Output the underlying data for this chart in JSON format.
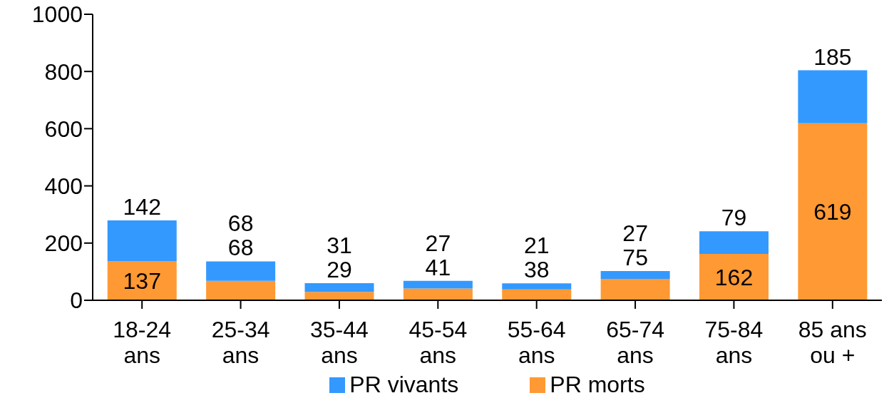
{
  "chart_data": {
    "type": "bar",
    "stacked": true,
    "categories": [
      "18-24 ans",
      "25-34 ans",
      "35-44 ans",
      "45-54 ans",
      "55-64 ans",
      "65-74 ans",
      "75-84 ans",
      "85 ans ou +"
    ],
    "series": [
      {
        "name": "PR morts",
        "color": "#ff9933",
        "values": [
          137,
          68,
          29,
          41,
          38,
          75,
          162,
          619
        ]
      },
      {
        "name": "PR vivants",
        "color": "#3399ff",
        "values": [
          142,
          68,
          31,
          27,
          21,
          27,
          79,
          185
        ]
      }
    ],
    "ylim": [
      0,
      1000
    ],
    "yticks": [
      0,
      200,
      400,
      600,
      800,
      1000
    ],
    "grid": false,
    "legend": "bottom",
    "data_labels": true
  }
}
